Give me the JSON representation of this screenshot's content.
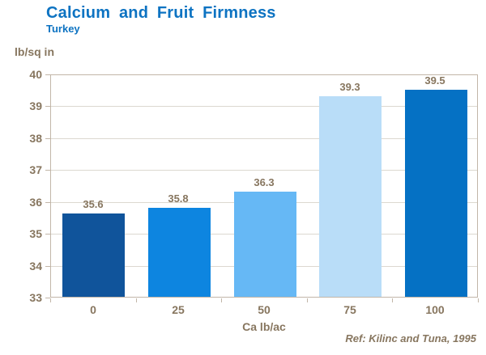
{
  "header": {
    "title": "Calcium and Fruit Firmness",
    "subtitle": "Turkey"
  },
  "footer": {
    "reference": "Ref: Kilinc and Tuna, 1995"
  },
  "chart_data": {
    "type": "bar",
    "title": "Calcium and Fruit Firmness",
    "subtitle": "Turkey",
    "categories": [
      "0",
      "25",
      "50",
      "75",
      "100"
    ],
    "values": [
      35.6,
      35.8,
      36.3,
      39.3,
      39.5
    ],
    "value_labels": [
      "35.6",
      "35.8",
      "36.3",
      "39.3",
      "39.5"
    ],
    "bar_colors": [
      "#10549b",
      "#0d85e0",
      "#66b8f5",
      "#b9ddf8",
      "#0571c4"
    ],
    "xlabel": "Ca lb/ac",
    "ylabel": "lb/sq in",
    "ylim": [
      33,
      40
    ],
    "yticks": [
      33,
      34,
      35,
      36,
      37,
      38,
      39,
      40
    ],
    "grid": true,
    "legend_position": "none",
    "reference": "Ref: Kilinc and Tuna, 1995",
    "colors": {
      "title_text": "#0d73c2",
      "axis_text": "#87765f",
      "gridline": "#dcd8d0",
      "axis_line": "#c2b6a8"
    }
  }
}
